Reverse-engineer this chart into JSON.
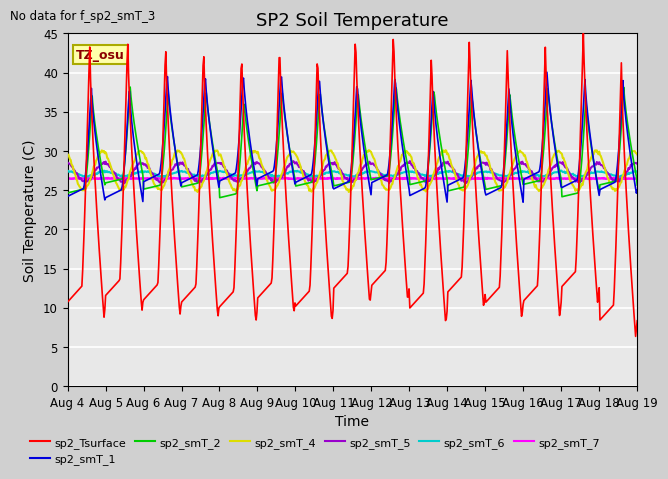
{
  "title": "SP2 Soil Temperature",
  "xlabel": "Time",
  "ylabel": "Soil Temperature (C)",
  "no_data_text": "No data for f_sp2_smT_3",
  "tz_label": "TZ_osu",
  "ylim": [
    0,
    45
  ],
  "yticks": [
    0,
    5,
    10,
    15,
    20,
    25,
    30,
    35,
    40,
    45
  ],
  "x_tick_labels": [
    "Aug 4",
    "Aug 5",
    "Aug 6",
    "Aug 7",
    "Aug 8",
    "Aug 9",
    "Aug 10",
    "Aug 11",
    "Aug 12",
    "Aug 13",
    "Aug 14",
    "Aug 15",
    "Aug 16",
    "Aug 17",
    "Aug 18",
    "Aug 19"
  ],
  "series_colors": {
    "sp2_Tsurface": "#ff0000",
    "sp2_smT_1": "#0000dd",
    "sp2_smT_2": "#00cc00",
    "sp2_smT_4": "#dddd00",
    "sp2_smT_5": "#9900cc",
    "sp2_smT_6": "#00cccc",
    "sp2_smT_7": "#ff00ff"
  },
  "fig_bg": "#d0d0d0",
  "plot_bg": "#e8e8e8",
  "title_fontsize": 13,
  "axis_fontsize": 10,
  "tick_fontsize": 8.5
}
